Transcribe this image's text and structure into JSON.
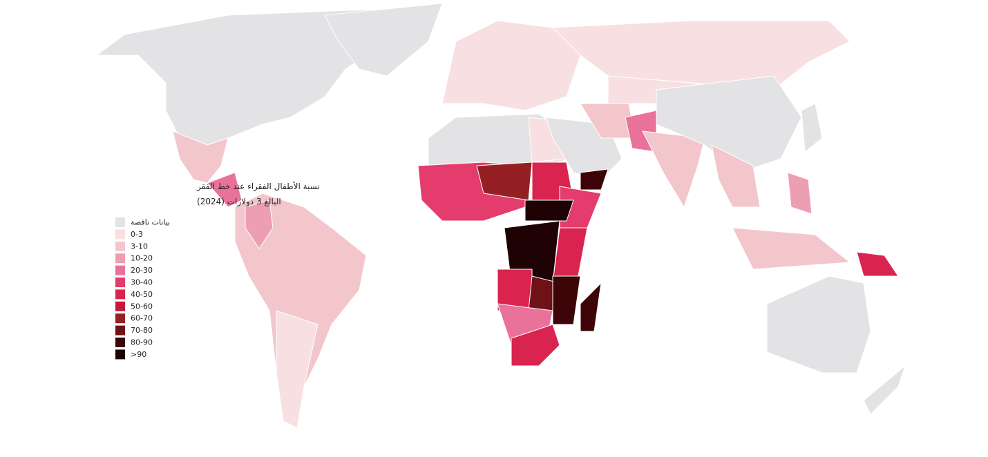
{
  "legend": {
    "title": [
      "نسبة الأطفال الفقراء عند خط الفقر",
      "البالغ 3 دولارات (2024)"
    ],
    "items": [
      {
        "label": "بيانات ناقصة",
        "color": "#e3e3e5"
      },
      {
        "label": "0-3",
        "color": "#f8e0e2"
      },
      {
        "label": "3-10",
        "color": "#f3c6cc"
      },
      {
        "label": "10-20",
        "color": "#ec9fb2"
      },
      {
        "label": "20-30",
        "color": "#e8729a"
      },
      {
        "label": "30-40",
        "color": "#e43c6c"
      },
      {
        "label": "40-50",
        "color": "#d92450"
      },
      {
        "label": "50-60",
        "color": "#c8183a"
      },
      {
        "label": "60-70",
        "color": "#952023"
      },
      {
        "label": "70-80",
        "color": "#6e1217"
      },
      {
        "label": "80-90",
        "color": "#3d0507"
      },
      {
        "label": ">90",
        "color": "#1e0204"
      }
    ]
  }
}
